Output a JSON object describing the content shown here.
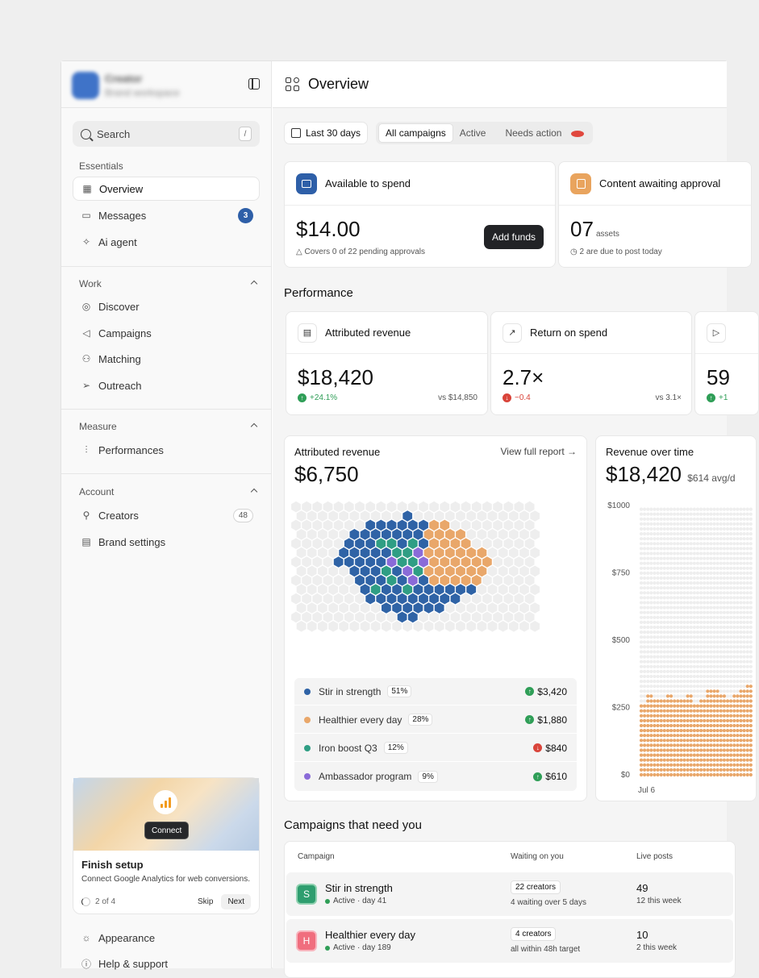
{
  "brand": {
    "name": "Creator",
    "subtitle": "Brand workspace"
  },
  "search": {
    "placeholder": "Search",
    "shortcut": "/"
  },
  "sidebar": {
    "sections": [
      {
        "label": "Essentials",
        "items": [
          {
            "label": "Overview",
            "icon": "grid-icon"
          },
          {
            "label": "Messages",
            "icon": "message-icon",
            "badge": "3"
          },
          {
            "label": "Ai agent",
            "icon": "sparkle-icon"
          }
        ]
      },
      {
        "label": "Work",
        "items": [
          {
            "label": "Discover",
            "icon": "compass-icon"
          },
          {
            "label": "Campaigns",
            "icon": "megaphone-icon"
          },
          {
            "label": "Matching",
            "icon": "users-icon"
          },
          {
            "label": "Outreach",
            "icon": "send-icon"
          }
        ]
      },
      {
        "label": "Measure",
        "items": [
          {
            "label": "Performances",
            "icon": "bars-icon"
          }
        ]
      },
      {
        "label": "Account",
        "items": [
          {
            "label": "Creators",
            "icon": "user-icon",
            "count": "48"
          },
          {
            "label": "Brand settings",
            "icon": "building-icon"
          }
        ]
      }
    ],
    "setup": {
      "connect_label": "Connect",
      "title": "Finish setup",
      "description": "Connect Google Analytics for web conversions.",
      "progress": "2 of 4",
      "skip_label": "Skip",
      "next_label": "Next"
    },
    "footer": [
      {
        "label": "Appearance",
        "icon": "sun-icon"
      },
      {
        "label": "Help & support",
        "icon": "help-icon"
      }
    ]
  },
  "header": {
    "title": "Overview"
  },
  "filters": {
    "date_range": "Last 30 days",
    "segments": [
      "All campaigns",
      "Active",
      "Needs action"
    ],
    "active_segment": "All campaigns"
  },
  "spend": {
    "title": "Available to spend",
    "amount": "$14.00",
    "note": "Covers 0 of 22 pending approvals",
    "button": "Add funds"
  },
  "approval": {
    "title": "Content awaiting approval",
    "count": "07",
    "unit": "assets",
    "note": "2 are due to post today"
  },
  "performance": {
    "title": "Performance",
    "cards": [
      {
        "title": "Attributed revenue",
        "value": "$18,420",
        "delta": "+24.1%",
        "direction": "up",
        "compare": "vs $14,850"
      },
      {
        "title": "Return on spend",
        "value": "2.7×",
        "delta": "−0.4",
        "direction": "down",
        "compare": "vs 3.1×"
      },
      {
        "title": "",
        "value": "59",
        "delta": "+1",
        "direction": "up",
        "compare": ""
      }
    ]
  },
  "attributed": {
    "title": "Attributed revenue",
    "amount": "$6,750",
    "link": "View full report →",
    "colors": {
      "Stir in strength": "#2f63a6",
      "Healthier every day": "#e9a76a",
      "Iron boost Q3": "#2f9e84",
      "Ambassador program": "#8a6bd8",
      "empty": "#eeeeee"
    },
    "campaigns": [
      {
        "name": "Stir in strength",
        "share": "51%",
        "amount": "$3,420",
        "direction": "up",
        "color": "#2f63a6"
      },
      {
        "name": "Healthier every day",
        "share": "28%",
        "amount": "$1,880",
        "direction": "up",
        "color": "#e9a76a"
      },
      {
        "name": "Iron boost Q3",
        "share": "12%",
        "amount": "$840",
        "direction": "down",
        "color": "#2f9e84"
      },
      {
        "name": "Ambassador program",
        "share": "9%",
        "amount": "$610",
        "direction": "up",
        "color": "#8a6bd8"
      }
    ]
  },
  "revenue_over_time": {
    "title": "Revenue over time",
    "amount": "$18,420",
    "avg": "$614 avg/d",
    "y_ticks": [
      "$1000",
      "$750",
      "$500",
      "$250",
      "$0"
    ],
    "x_label": "Jul 6",
    "bar_color": "#e9a76a",
    "empty_color": "#eeeeee"
  },
  "chart_data": {
    "type": "bar",
    "title": "Revenue over time",
    "ylim": [
      0,
      1000
    ],
    "x": [
      "Jul 6",
      "",
      "",
      "",
      "",
      "",
      "",
      "",
      "",
      "",
      "",
      "",
      "",
      "",
      "",
      "",
      ""
    ],
    "values": [
      280,
      310,
      290,
      300,
      320,
      290,
      300,
      310,
      280,
      300,
      330,
      340,
      320,
      300,
      310,
      330,
      360
    ]
  },
  "campaigns_table": {
    "title": "Campaigns that need you",
    "columns": [
      "Campaign",
      "Waiting on you",
      "Live posts"
    ],
    "rows": [
      {
        "initial": "S",
        "color": "#2f9e6f",
        "name": "Stir in strength",
        "status": "Active · day 41",
        "waiting": "22 creators",
        "waiting_note": "4 waiting over 5 days",
        "live": "49",
        "live_note": "12 this week"
      },
      {
        "initial": "H",
        "color": "#f06e7e",
        "name": "Healthier every day",
        "status": "Active · day 189",
        "waiting": "4 creators",
        "waiting_note": "all within 48h target",
        "live": "10",
        "live_note": "2 this week"
      }
    ]
  }
}
